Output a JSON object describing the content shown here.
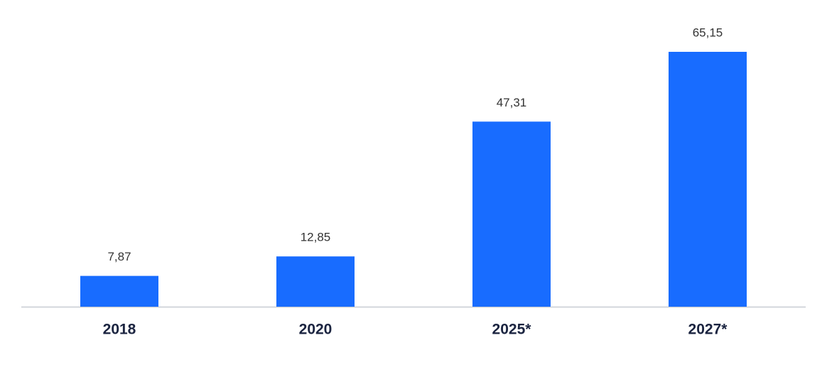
{
  "chart_data": {
    "type": "bar",
    "categories": [
      "2018",
      "2020",
      "2025*",
      "2027*"
    ],
    "values": [
      7.87,
      12.85,
      47.31,
      65.15
    ],
    "value_labels": [
      "7,87",
      "12,85",
      "47,31",
      "65,15"
    ],
    "color": "#186cff"
  }
}
